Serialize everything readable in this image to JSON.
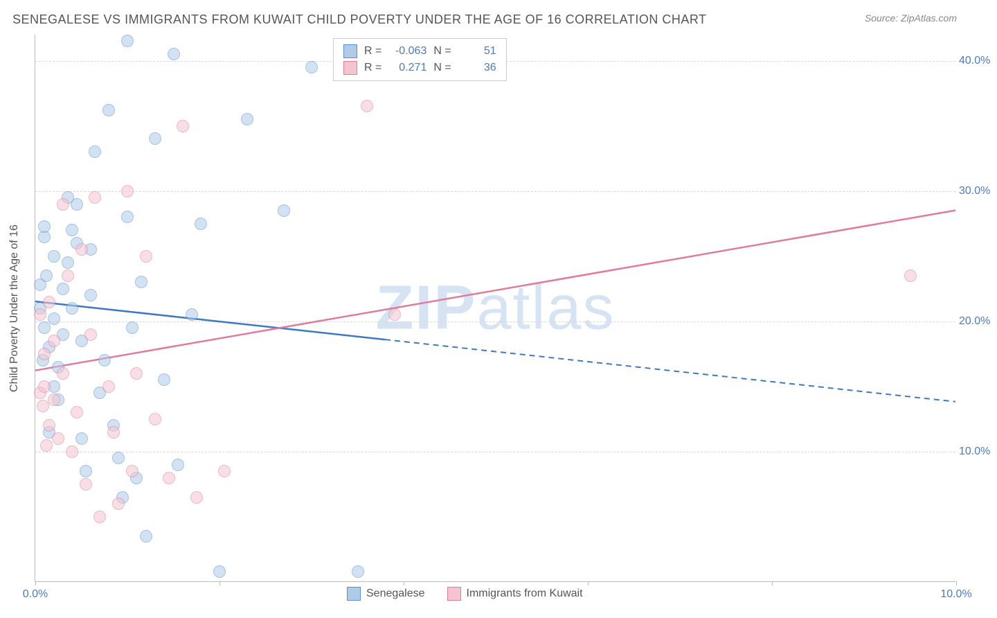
{
  "title": "SENEGALESE VS IMMIGRANTS FROM KUWAIT CHILD POVERTY UNDER THE AGE OF 16 CORRELATION CHART",
  "source": "Source: ZipAtlas.com",
  "watermark_bold": "ZIP",
  "watermark_rest": "atlas",
  "y_axis_title": "Child Poverty Under the Age of 16",
  "chart": {
    "type": "scatter",
    "xlim": [
      0,
      10
    ],
    "ylim": [
      0,
      42
    ],
    "y_gridlines": [
      10,
      20,
      30,
      40
    ],
    "y_tick_labels": [
      "10.0%",
      "20.0%",
      "30.0%",
      "40.0%"
    ],
    "x_ticks": [
      0,
      2,
      4,
      6,
      8,
      10
    ],
    "x_tick_labels": {
      "0": "0.0%",
      "10": "10.0%"
    },
    "grid_color": "#d8d8d8",
    "axis_color": "#bbbbbb",
    "label_color": "#4a7bc4",
    "background_color": "#ffffff",
    "marker_radius": 9,
    "marker_opacity": 0.55
  },
  "series": [
    {
      "name": "Senegalese",
      "fill": "#aecbe8",
      "stroke": "#5a8fce",
      "line_color": "#3c78c3",
      "r": -0.063,
      "n": 51,
      "trend": {
        "y_at_x0": 21.5,
        "y_at_x10": 13.8,
        "solid_until_x": 3.8
      },
      "points": [
        [
          0.05,
          21.0
        ],
        [
          0.05,
          22.8
        ],
        [
          0.1,
          19.5
        ],
        [
          0.1,
          26.5
        ],
        [
          0.1,
          27.3
        ],
        [
          0.12,
          23.5
        ],
        [
          0.15,
          18.0
        ],
        [
          0.2,
          25.0
        ],
        [
          0.2,
          20.2
        ],
        [
          0.25,
          16.5
        ],
        [
          0.25,
          14.0
        ],
        [
          0.3,
          22.5
        ],
        [
          0.3,
          19.0
        ],
        [
          0.35,
          24.5
        ],
        [
          0.4,
          27.0
        ],
        [
          0.4,
          21.0
        ],
        [
          0.45,
          29.0
        ],
        [
          0.45,
          26.0
        ],
        [
          0.5,
          18.5
        ],
        [
          0.5,
          11.0
        ],
        [
          0.55,
          8.5
        ],
        [
          0.6,
          25.5
        ],
        [
          0.6,
          22.0
        ],
        [
          0.65,
          33.0
        ],
        [
          0.7,
          14.5
        ],
        [
          0.75,
          17.0
        ],
        [
          0.8,
          36.2
        ],
        [
          0.85,
          12.0
        ],
        [
          0.9,
          9.5
        ],
        [
          0.95,
          6.5
        ],
        [
          1.0,
          41.5
        ],
        [
          1.0,
          28.0
        ],
        [
          1.05,
          19.5
        ],
        [
          1.1,
          8.0
        ],
        [
          1.15,
          23.0
        ],
        [
          1.2,
          3.5
        ],
        [
          1.3,
          34.0
        ],
        [
          1.4,
          15.5
        ],
        [
          1.5,
          40.5
        ],
        [
          1.55,
          9.0
        ],
        [
          1.7,
          20.5
        ],
        [
          1.8,
          27.5
        ],
        [
          2.0,
          0.8
        ],
        [
          2.3,
          35.5
        ],
        [
          2.7,
          28.5
        ],
        [
          3.0,
          39.5
        ],
        [
          3.5,
          0.8
        ],
        [
          0.08,
          17.0
        ],
        [
          0.35,
          29.5
        ],
        [
          0.2,
          15.0
        ],
        [
          0.15,
          11.5
        ]
      ]
    },
    {
      "name": "Immigrants from Kuwait",
      "fill": "#f4c5d1",
      "stroke": "#e27a9a",
      "line_color": "#e27a9a",
      "r": 0.271,
      "n": 36,
      "trend": {
        "y_at_x0": 16.2,
        "y_at_x10": 28.5,
        "solid_until_x": 10
      },
      "points": [
        [
          0.05,
          20.5
        ],
        [
          0.05,
          14.5
        ],
        [
          0.08,
          13.5
        ],
        [
          0.1,
          17.5
        ],
        [
          0.1,
          15.0
        ],
        [
          0.15,
          21.5
        ],
        [
          0.15,
          12.0
        ],
        [
          0.2,
          14.0
        ],
        [
          0.2,
          18.5
        ],
        [
          0.25,
          11.0
        ],
        [
          0.3,
          29.0
        ],
        [
          0.3,
          16.0
        ],
        [
          0.35,
          23.5
        ],
        [
          0.4,
          10.0
        ],
        [
          0.45,
          13.0
        ],
        [
          0.5,
          25.5
        ],
        [
          0.55,
          7.5
        ],
        [
          0.6,
          19.0
        ],
        [
          0.65,
          29.5
        ],
        [
          0.7,
          5.0
        ],
        [
          0.8,
          15.0
        ],
        [
          0.85,
          11.5
        ],
        [
          0.9,
          6.0
        ],
        [
          1.0,
          30.0
        ],
        [
          1.05,
          8.5
        ],
        [
          1.1,
          16.0
        ],
        [
          1.2,
          25.0
        ],
        [
          1.3,
          12.5
        ],
        [
          1.45,
          8.0
        ],
        [
          1.6,
          35.0
        ],
        [
          1.75,
          6.5
        ],
        [
          2.05,
          8.5
        ],
        [
          3.6,
          36.5
        ],
        [
          3.9,
          20.5
        ],
        [
          9.5,
          23.5
        ],
        [
          0.12,
          10.5
        ]
      ]
    }
  ],
  "stats_legend": {
    "r_label": "R =",
    "n_label": "N ="
  },
  "bottom_legend": {
    "items": [
      "Senegalese",
      "Immigrants from Kuwait"
    ]
  }
}
